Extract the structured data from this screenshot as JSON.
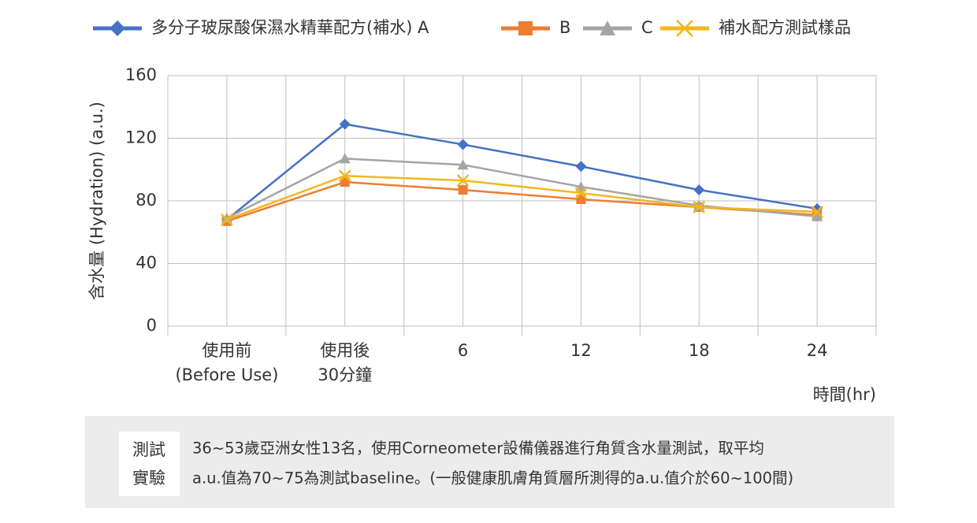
{
  "chart_data": {
    "type": "line",
    "categories": [
      [
        "使用前",
        "(Before Use)"
      ],
      [
        "使用後",
        "30分鐘"
      ],
      [
        "6"
      ],
      [
        "12"
      ],
      [
        "18"
      ],
      [
        "24"
      ]
    ],
    "series": [
      {
        "name": "多分子玻尿酸保濕水精華配方(補水) A",
        "color": "#4472c4",
        "marker": "diamond",
        "values": [
          68,
          129,
          116,
          102,
          87,
          75
        ]
      },
      {
        "name": "B",
        "color": "#ed7d31",
        "marker": "square",
        "values": [
          67,
          92,
          87,
          81,
          76,
          71
        ]
      },
      {
        "name": "C",
        "color": "#a5a5a5",
        "marker": "triangle",
        "values": [
          69,
          107,
          103,
          89,
          77,
          70
        ]
      },
      {
        "name": "補水配方測試樣品",
        "color": "#f2b71d",
        "marker": "x",
        "values": [
          68,
          96,
          93,
          85,
          76,
          73
        ]
      }
    ],
    "ylim": [
      0,
      160
    ],
    "yticks": [
      0,
      40,
      80,
      120,
      160
    ],
    "grid": true,
    "ylabel": "含水量 (Hydration) (a.u.)",
    "xlabel": "時間(hr)"
  },
  "note": {
    "label": [
      "測試",
      "實驗"
    ],
    "lines": [
      "36~53歲亞洲女性13名，使用Corneometer設備儀器進行角質含水量測試，取平均",
      "a.u.值為70~75為測試baseline。(一般健康肌膚角質層所測得的a.u.值介於60~100間)"
    ]
  }
}
